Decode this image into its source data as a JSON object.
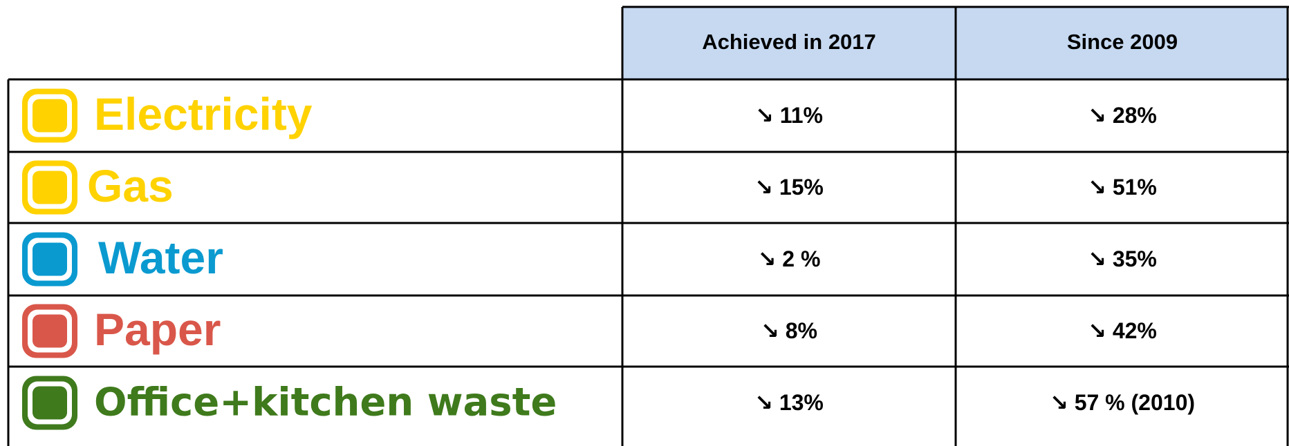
{
  "table": {
    "header": [
      "Achieved in 2017",
      "Since 2009"
    ],
    "rows": [
      [
        "Electricity",
        "↘ 11%",
        "↘ 28%"
      ],
      [
        "Gas",
        "↘ 15%",
        "↘ 51%"
      ],
      [
        "Water",
        "↘ 2 %",
        "↘ 35%"
      ],
      [
        "Paper",
        "↘ 8%",
        "↘ 42%"
      ],
      [
        "Office+kitchen waste",
        "↘ 13%",
        "↘ 57 % (2010)"
      ]
    ]
  }
}
